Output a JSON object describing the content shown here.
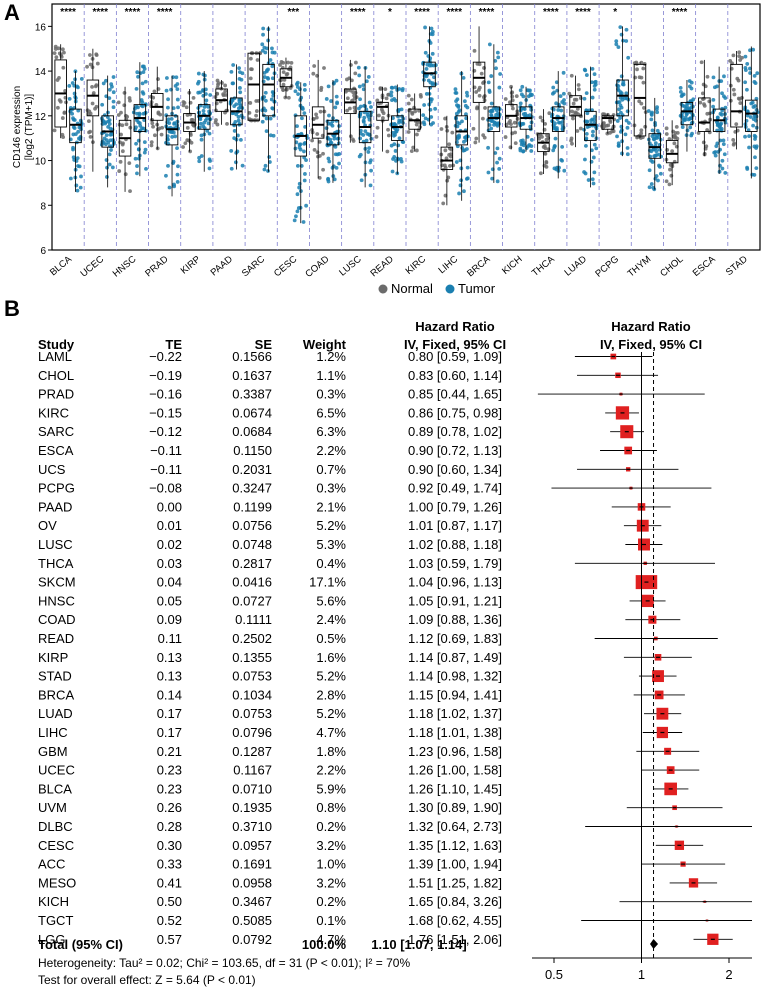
{
  "panel_a_label": "A",
  "panel_b_label": "B",
  "legend": {
    "normal_label": "Normal",
    "tumor_label": "Tumor",
    "normal_color": "#6b6b6b",
    "tumor_color": "#1a7fb0"
  },
  "forest_headers": {
    "study": "Study",
    "te": "TE",
    "se": "SE",
    "weight": "Weight",
    "hr_line1": "Hazard Ratio",
    "hr_line2": "IV, Fixed, 95% CI",
    "plot_line1": "Hazard Ratio",
    "plot_line2": "IV, Fixed, 95% CI"
  },
  "forest_total": {
    "label": "Total (95% CI)",
    "weight": "100.0%",
    "hr": "1.10 [1.07, 1.14]"
  },
  "forest_footer": {
    "heterogeneity": "Heterogeneity: Tau² = 0.02; Chi² = 103.65, df = 31 (P < 0.01); I² = 70%",
    "overall": "Test for overall effect: Z = 5.64 (P < 0.01)"
  },
  "chart_data": [
    {
      "type": "box",
      "panel": "A",
      "ylabel": "CD146 expression [log2 (TPM+1)]",
      "ylabel_line1": "CD146 expression",
      "ylabel_line2": "[log2 (TPM+1)]",
      "ylim": [
        6,
        17
      ],
      "yticks": [
        "6",
        "8",
        "10",
        "12",
        "14",
        "16"
      ],
      "groups": [
        {
          "name": "BLCA",
          "sig": "****",
          "normal": {
            "q1": 11.5,
            "median": 13.0,
            "q3": 14.5,
            "min": 11.0,
            "max": 15.2
          },
          "tumor": {
            "q1": 10.8,
            "median": 11.6,
            "q3": 12.3,
            "min": 8.6,
            "max": 14.0
          }
        },
        {
          "name": "UCEC",
          "sig": "****",
          "normal": {
            "q1": 12.0,
            "median": 12.9,
            "q3": 13.6,
            "min": 9.5,
            "max": 15.0
          },
          "tumor": {
            "q1": 10.6,
            "median": 11.3,
            "q3": 12.0,
            "min": 8.8,
            "max": 13.8
          }
        },
        {
          "name": "HNSC",
          "sig": "****",
          "normal": {
            "q1": 10.2,
            "median": 11.0,
            "q3": 11.8,
            "min": 8.6,
            "max": 13.3
          },
          "tumor": {
            "q1": 11.3,
            "median": 11.9,
            "q3": 12.5,
            "min": 9.3,
            "max": 14.4
          }
        },
        {
          "name": "PRAD",
          "sig": "****",
          "normal": {
            "q1": 11.8,
            "median": 12.4,
            "q3": 13.0,
            "min": 10.5,
            "max": 14.2
          },
          "tumor": {
            "q1": 10.7,
            "median": 11.4,
            "q3": 12.0,
            "min": 8.4,
            "max": 13.8
          }
        },
        {
          "name": "KIRP",
          "sig": "",
          "normal": {
            "q1": 11.3,
            "median": 11.7,
            "q3": 12.1,
            "min": 10.4,
            "max": 13.2
          },
          "tumor": {
            "q1": 11.4,
            "median": 12.0,
            "q3": 12.5,
            "min": 9.5,
            "max": 14.0
          }
        },
        {
          "name": "PAAD",
          "sig": "",
          "normal": {
            "q1": 12.2,
            "median": 12.7,
            "q3": 13.2,
            "min": 11.6,
            "max": 13.6
          },
          "tumor": {
            "q1": 11.6,
            "median": 12.2,
            "q3": 12.8,
            "min": 9.6,
            "max": 14.3
          }
        },
        {
          "name": "SARC",
          "sig": "",
          "normal": {
            "q1": 11.8,
            "median": 13.4,
            "q3": 14.8,
            "min": 11.8,
            "max": 14.8
          },
          "tumor": {
            "q1": 12.0,
            "median": 13.4,
            "q3": 14.3,
            "min": 9.5,
            "max": 16.0
          }
        },
        {
          "name": "CESC",
          "sig": "***",
          "normal": {
            "q1": 13.3,
            "median": 13.7,
            "q3": 14.1,
            "min": 12.8,
            "max": 14.6
          },
          "tumor": {
            "q1": 10.2,
            "median": 11.1,
            "q3": 12.0,
            "min": 7.2,
            "max": 13.5
          }
        },
        {
          "name": "COAD",
          "sig": "",
          "normal": {
            "q1": 11.0,
            "median": 11.6,
            "q3": 12.4,
            "min": 9.2,
            "max": 14.5
          },
          "tumor": {
            "q1": 10.7,
            "median": 11.2,
            "q3": 11.8,
            "min": 9.0,
            "max": 13.6
          }
        },
        {
          "name": "LUSC",
          "sig": "****",
          "normal": {
            "q1": 12.1,
            "median": 12.6,
            "q3": 13.2,
            "min": 10.8,
            "max": 14.5
          },
          "tumor": {
            "q1": 10.8,
            "median": 11.5,
            "q3": 12.2,
            "min": 8.8,
            "max": 14.2
          }
        },
        {
          "name": "READ",
          "sig": "*",
          "normal": {
            "q1": 11.8,
            "median": 12.4,
            "q3": 12.6,
            "min": 10.4,
            "max": 13.3
          },
          "tumor": {
            "q1": 10.9,
            "median": 11.5,
            "q3": 12.0,
            "min": 9.4,
            "max": 13.4
          }
        },
        {
          "name": "KIRC",
          "sig": "****",
          "normal": {
            "q1": 11.4,
            "median": 11.8,
            "q3": 12.3,
            "min": 10.4,
            "max": 13.0
          },
          "tumor": {
            "q1": 13.3,
            "median": 13.9,
            "q3": 14.4,
            "min": 11.6,
            "max": 16.0
          }
        },
        {
          "name": "LIHC",
          "sig": "****",
          "normal": {
            "q1": 9.6,
            "median": 10.0,
            "q3": 10.6,
            "min": 8.0,
            "max": 12.0
          },
          "tumor": {
            "q1": 10.7,
            "median": 11.3,
            "q3": 12.0,
            "min": 8.2,
            "max": 14.0
          }
        },
        {
          "name": "BRCA",
          "sig": "****",
          "normal": {
            "q1": 12.6,
            "median": 13.7,
            "q3": 14.4,
            "min": 10.8,
            "max": 16.0
          },
          "tumor": {
            "q1": 11.3,
            "median": 11.9,
            "q3": 12.4,
            "min": 9.0,
            "max": 15.2
          }
        },
        {
          "name": "KICH",
          "sig": "",
          "normal": {
            "q1": 11.5,
            "median": 12.0,
            "q3": 12.5,
            "min": 10.5,
            "max": 13.3
          },
          "tumor": {
            "q1": 11.4,
            "median": 11.9,
            "q3": 12.4,
            "min": 10.4,
            "max": 13.3
          }
        },
        {
          "name": "THCA",
          "sig": "****",
          "normal": {
            "q1": 10.4,
            "median": 10.8,
            "q3": 11.2,
            "min": 9.4,
            "max": 12.3
          },
          "tumor": {
            "q1": 11.3,
            "median": 11.9,
            "q3": 12.4,
            "min": 9.2,
            "max": 14.0
          }
        },
        {
          "name": "LUAD",
          "sig": "****",
          "normal": {
            "q1": 12.0,
            "median": 12.4,
            "q3": 12.9,
            "min": 10.6,
            "max": 13.8
          },
          "tumor": {
            "q1": 10.9,
            "median": 11.6,
            "q3": 12.2,
            "min": 8.8,
            "max": 14.2
          }
        },
        {
          "name": "PCPG",
          "sig": "*",
          "normal": {
            "q1": 11.4,
            "median": 11.9,
            "q3": 12.0,
            "min": 11.2,
            "max": 12.1
          },
          "tumor": {
            "q1": 12.0,
            "median": 12.9,
            "q3": 13.6,
            "min": 10.2,
            "max": 16.0
          }
        },
        {
          "name": "THYM",
          "sig": "",
          "normal": {
            "q1": 11.1,
            "median": 12.8,
            "q3": 14.3,
            "min": 11.0,
            "max": 14.4
          },
          "tumor": {
            "q1": 10.1,
            "median": 10.6,
            "q3": 11.2,
            "min": 8.7,
            "max": 12.8
          }
        },
        {
          "name": "CHOL",
          "sig": "****",
          "normal": {
            "q1": 9.9,
            "median": 10.3,
            "q3": 10.9,
            "min": 8.9,
            "max": 11.8
          },
          "tumor": {
            "q1": 11.6,
            "median": 12.2,
            "q3": 12.6,
            "min": 10.4,
            "max": 13.6
          }
        },
        {
          "name": "ESCA",
          "sig": "",
          "normal": {
            "q1": 11.3,
            "median": 11.7,
            "q3": 12.8,
            "min": 10.2,
            "max": 14.5
          },
          "tumor": {
            "q1": 11.3,
            "median": 11.8,
            "q3": 12.3,
            "min": 9.4,
            "max": 14.2
          }
        },
        {
          "name": "STAD",
          "sig": "",
          "normal": {
            "q1": 11.5,
            "median": 12.2,
            "q3": 14.3,
            "min": 10.5,
            "max": 14.9
          },
          "tumor": {
            "q1": 11.3,
            "median": 12.1,
            "q3": 12.7,
            "min": 9.2,
            "max": 15.1
          }
        }
      ]
    },
    {
      "type": "forest",
      "panel": "B",
      "xlabel_ticks": [
        "0.5",
        "1",
        "2"
      ],
      "xscale": "log",
      "xlim": [
        0.42,
        2.4
      ],
      "reference_line": 1,
      "pooled_line": 1.1,
      "pooled": {
        "hr": 1.1,
        "lo": 1.07,
        "hi": 1.14
      },
      "studies": [
        {
          "study": "LAML",
          "te": "−0.22",
          "se": "0.1566",
          "weight": "1.2%",
          "hr_text": "0.80 [0.59, 1.09]",
          "hr": 0.8,
          "lo": 0.59,
          "hi": 1.09,
          "w": 1.2
        },
        {
          "study": "CHOL",
          "te": "−0.19",
          "se": "0.1637",
          "weight": "1.1%",
          "hr_text": "0.83 [0.60, 1.14]",
          "hr": 0.83,
          "lo": 0.6,
          "hi": 1.14,
          "w": 1.1
        },
        {
          "study": "PRAD",
          "te": "−0.16",
          "se": "0.3387",
          "weight": "0.3%",
          "hr_text": "0.85 [0.44, 1.65]",
          "hr": 0.85,
          "lo": 0.44,
          "hi": 1.65,
          "w": 0.3
        },
        {
          "study": "KIRC",
          "te": "−0.15",
          "se": "0.0674",
          "weight": "6.5%",
          "hr_text": "0.86 [0.75, 0.98]",
          "hr": 0.86,
          "lo": 0.75,
          "hi": 0.98,
          "w": 6.5
        },
        {
          "study": "SARC",
          "te": "−0.12",
          "se": "0.0684",
          "weight": "6.3%",
          "hr_text": "0.89 [0.78, 1.02]",
          "hr": 0.89,
          "lo": 0.78,
          "hi": 1.02,
          "w": 6.3
        },
        {
          "study": "ESCA",
          "te": "−0.11",
          "se": "0.1150",
          "weight": "2.2%",
          "hr_text": "0.90 [0.72, 1.13]",
          "hr": 0.9,
          "lo": 0.72,
          "hi": 1.13,
          "w": 2.2
        },
        {
          "study": "UCS",
          "te": "−0.11",
          "se": "0.2031",
          "weight": "0.7%",
          "hr_text": "0.90 [0.60, 1.34]",
          "hr": 0.9,
          "lo": 0.6,
          "hi": 1.34,
          "w": 0.7
        },
        {
          "study": "PCPG",
          "te": "−0.08",
          "se": "0.3247",
          "weight": "0.3%",
          "hr_text": "0.92 [0.49, 1.74]",
          "hr": 0.92,
          "lo": 0.49,
          "hi": 1.74,
          "w": 0.3
        },
        {
          "study": "PAAD",
          "te": "0.00",
          "se": "0.1199",
          "weight": "2.1%",
          "hr_text": "1.00 [0.79, 1.26]",
          "hr": 1.0,
          "lo": 0.79,
          "hi": 1.26,
          "w": 2.1
        },
        {
          "study": "OV",
          "te": "0.01",
          "se": "0.0756",
          "weight": "5.2%",
          "hr_text": "1.01 [0.87, 1.17]",
          "hr": 1.01,
          "lo": 0.87,
          "hi": 1.17,
          "w": 5.2
        },
        {
          "study": "LUSC",
          "te": "0.02",
          "se": "0.0748",
          "weight": "5.3%",
          "hr_text": "1.02 [0.88, 1.18]",
          "hr": 1.02,
          "lo": 0.88,
          "hi": 1.18,
          "w": 5.3
        },
        {
          "study": "THCA",
          "te": "0.03",
          "se": "0.2817",
          "weight": "0.4%",
          "hr_text": "1.03 [0.59, 1.79]",
          "hr": 1.03,
          "lo": 0.59,
          "hi": 1.79,
          "w": 0.4
        },
        {
          "study": "SKCM",
          "te": "0.04",
          "se": "0.0416",
          "weight": "17.1%",
          "hr_text": "1.04 [0.96, 1.13]",
          "hr": 1.04,
          "lo": 0.96,
          "hi": 1.13,
          "w": 17.1
        },
        {
          "study": "HNSC",
          "te": "0.05",
          "se": "0.0727",
          "weight": "5.6%",
          "hr_text": "1.05 [0.91, 1.21]",
          "hr": 1.05,
          "lo": 0.91,
          "hi": 1.21,
          "w": 5.6
        },
        {
          "study": "COAD",
          "te": "0.09",
          "se": "0.1111",
          "weight": "2.4%",
          "hr_text": "1.09 [0.88, 1.36]",
          "hr": 1.09,
          "lo": 0.88,
          "hi": 1.36,
          "w": 2.4
        },
        {
          "study": "READ",
          "te": "0.11",
          "se": "0.2502",
          "weight": "0.5%",
          "hr_text": "1.12 [0.69, 1.83]",
          "hr": 1.12,
          "lo": 0.69,
          "hi": 1.83,
          "w": 0.5
        },
        {
          "study": "KIRP",
          "te": "0.13",
          "se": "0.1355",
          "weight": "1.6%",
          "hr_text": "1.14 [0.87, 1.49]",
          "hr": 1.14,
          "lo": 0.87,
          "hi": 1.49,
          "w": 1.6
        },
        {
          "study": "STAD",
          "te": "0.13",
          "se": "0.0753",
          "weight": "5.2%",
          "hr_text": "1.14 [0.98, 1.32]",
          "hr": 1.14,
          "lo": 0.98,
          "hi": 1.32,
          "w": 5.2
        },
        {
          "study": "BRCA",
          "te": "0.14",
          "se": "0.1034",
          "weight": "2.8%",
          "hr_text": "1.15 [0.94, 1.41]",
          "hr": 1.15,
          "lo": 0.94,
          "hi": 1.41,
          "w": 2.8
        },
        {
          "study": "LUAD",
          "te": "0.17",
          "se": "0.0753",
          "weight": "5.2%",
          "hr_text": "1.18 [1.02, 1.37]",
          "hr": 1.18,
          "lo": 1.02,
          "hi": 1.37,
          "w": 5.2
        },
        {
          "study": "LIHC",
          "te": "0.17",
          "se": "0.0796",
          "weight": "4.7%",
          "hr_text": "1.18 [1.01, 1.38]",
          "hr": 1.18,
          "lo": 1.01,
          "hi": 1.38,
          "w": 4.7
        },
        {
          "study": "GBM",
          "te": "0.21",
          "se": "0.1287",
          "weight": "1.8%",
          "hr_text": "1.23 [0.96, 1.58]",
          "hr": 1.23,
          "lo": 0.96,
          "hi": 1.58,
          "w": 1.8
        },
        {
          "study": "UCEC",
          "te": "0.23",
          "se": "0.1167",
          "weight": "2.2%",
          "hr_text": "1.26 [1.00, 1.58]",
          "hr": 1.26,
          "lo": 1.0,
          "hi": 1.58,
          "w": 2.2
        },
        {
          "study": "BLCA",
          "te": "0.23",
          "se": "0.0710",
          "weight": "5.9%",
          "hr_text": "1.26 [1.10, 1.45]",
          "hr": 1.26,
          "lo": 1.1,
          "hi": 1.45,
          "w": 5.9
        },
        {
          "study": "UVM",
          "te": "0.26",
          "se": "0.1935",
          "weight": "0.8%",
          "hr_text": "1.30 [0.89, 1.90]",
          "hr": 1.3,
          "lo": 0.89,
          "hi": 1.9,
          "w": 0.8
        },
        {
          "study": "DLBC",
          "te": "0.28",
          "se": "0.3710",
          "weight": "0.2%",
          "hr_text": "1.32 [0.64, 2.73]",
          "hr": 1.32,
          "lo": 0.64,
          "hi": 2.73,
          "w": 0.2
        },
        {
          "study": "CESC",
          "te": "0.30",
          "se": "0.0957",
          "weight": "3.2%",
          "hr_text": "1.35 [1.12, 1.63]",
          "hr": 1.35,
          "lo": 1.12,
          "hi": 1.63,
          "w": 3.2
        },
        {
          "study": "ACC",
          "te": "0.33",
          "se": "0.1691",
          "weight": "1.0%",
          "hr_text": "1.39 [1.00, 1.94]",
          "hr": 1.39,
          "lo": 1.0,
          "hi": 1.94,
          "w": 1.0
        },
        {
          "study": "MESO",
          "te": "0.41",
          "se": "0.0958",
          "weight": "3.2%",
          "hr_text": "1.51 [1.25, 1.82]",
          "hr": 1.51,
          "lo": 1.25,
          "hi": 1.82,
          "w": 3.2
        },
        {
          "study": "KICH",
          "te": "0.50",
          "se": "0.3467",
          "weight": "0.2%",
          "hr_text": "1.65 [0.84, 3.26]",
          "hr": 1.65,
          "lo": 0.84,
          "hi": 3.26,
          "w": 0.2
        },
        {
          "study": "TGCT",
          "te": "0.52",
          "se": "0.5085",
          "weight": "0.1%",
          "hr_text": "1.68 [0.62, 4.55]",
          "hr": 1.68,
          "lo": 0.62,
          "hi": 4.55,
          "w": 0.1
        },
        {
          "study": "LGG",
          "te": "0.57",
          "se": "0.0792",
          "weight": "4.7%",
          "hr_text": "1.76 [1.51, 2.06]",
          "hr": 1.76,
          "lo": 1.51,
          "hi": 2.06,
          "w": 4.7
        }
      ]
    }
  ]
}
